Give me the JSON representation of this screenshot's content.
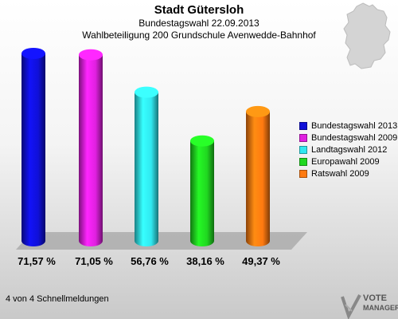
{
  "header": {
    "title": "Stadt Gütersloh",
    "subtitle": "Bundestagswahl 22.09.2013",
    "subtitle2": "Wahlbeteiligung 200 Grundschule Avenwedde-Bahnhof"
  },
  "chart_data": {
    "type": "bar",
    "title": "Stadt Gütersloh",
    "subtitle": "Bundestagswahl 22.09.2013 – Wahlbeteiligung 200 Grundschule Avenwedde-Bahnhof",
    "categories": [
      "Bundestagswahl 2013",
      "Bundestagswahl 2009",
      "Landtagswahl 2012",
      "Europawahl 2009",
      "Ratswahl 2009"
    ],
    "values": [
      71.57,
      71.05,
      56.76,
      38.16,
      49.37
    ],
    "value_labels": [
      "71,57 %",
      "71,05 %",
      "56,76 %",
      "38,16 %",
      "49,37 %"
    ],
    "colors": [
      "#1010d8",
      "#e020e0",
      "#30e8f0",
      "#20d820",
      "#ff7a10"
    ],
    "ylim": [
      0,
      80
    ],
    "grid": false,
    "legend_position": "right"
  },
  "footer": {
    "text": "4 von 4 Schnellmeldungen"
  },
  "logo": {
    "line1": "VOTE",
    "line2": "MANAGER"
  },
  "icons": {
    "map": "germany-map-icon",
    "logo": "votemanager-logo-icon"
  }
}
